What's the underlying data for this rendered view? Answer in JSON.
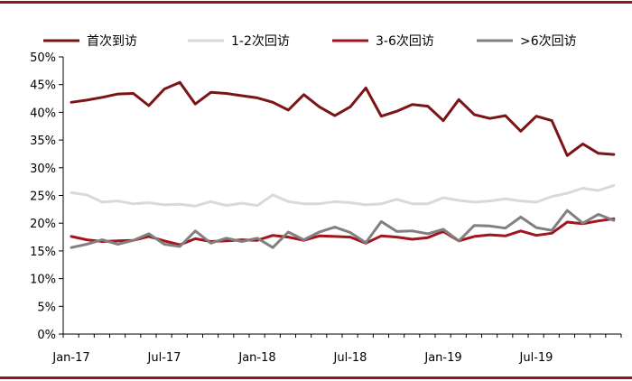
{
  "chart_data": {
    "type": "line",
    "title": "",
    "xlabel": "",
    "ylabel": "",
    "ylim": [
      0,
      50
    ],
    "y_ticks": [
      "0%",
      "5%",
      "10%",
      "15%",
      "20%",
      "25%",
      "30%",
      "35%",
      "40%",
      "45%",
      "50%"
    ],
    "x_tick_labels": [
      "Jan-17",
      "Jul-17",
      "Jan-18",
      "Jul-18",
      "Jan-19",
      "Jul-19"
    ],
    "x": [
      "2017-01",
      "2017-02",
      "2017-03",
      "2017-04",
      "2017-05",
      "2017-06",
      "2017-07",
      "2017-08",
      "2017-09",
      "2017-10",
      "2017-11",
      "2017-12",
      "2018-01",
      "2018-02",
      "2018-03",
      "2018-04",
      "2018-05",
      "2018-06",
      "2018-07",
      "2018-08",
      "2018-09",
      "2018-10",
      "2018-11",
      "2018-12",
      "2019-01",
      "2019-02",
      "2019-03",
      "2019-04",
      "2019-05",
      "2019-06",
      "2019-07",
      "2019-08",
      "2019-09",
      "2019-10",
      "2019-11",
      "2019-12"
    ],
    "legend_position": "top",
    "grid": false,
    "series": [
      {
        "name": "首次到访",
        "color": "#7b1416",
        "values": [
          41.8,
          42.2,
          42.7,
          43.3,
          43.4,
          41.2,
          44.2,
          45.4,
          41.5,
          43.6,
          43.4,
          43.0,
          42.6,
          41.8,
          40.4,
          43.2,
          41.0,
          39.4,
          41.0,
          44.4,
          39.3,
          40.2,
          41.4,
          41.1,
          38.5,
          42.3,
          39.6,
          38.9,
          39.4,
          36.6,
          39.3,
          38.5,
          32.2,
          34.3,
          32.6,
          32.4
        ]
      },
      {
        "name": "1-2次回访",
        "color": "#d9d9d9",
        "values": [
          25.5,
          25.1,
          23.8,
          24.0,
          23.5,
          23.7,
          23.3,
          23.4,
          23.1,
          23.9,
          23.2,
          23.6,
          23.2,
          25.1,
          23.9,
          23.5,
          23.5,
          23.9,
          23.7,
          23.3,
          23.5,
          24.3,
          23.5,
          23.5,
          24.6,
          24.1,
          23.8,
          24.0,
          24.4,
          24.0,
          23.8,
          24.8,
          25.4,
          26.3,
          25.9,
          26.8
        ]
      },
      {
        "name": "3-6次回访",
        "color": "#a3141c",
        "values": [
          17.6,
          17.0,
          16.7,
          16.8,
          16.9,
          17.6,
          16.8,
          16.1,
          17.2,
          16.7,
          16.8,
          17.0,
          16.9,
          17.8,
          17.5,
          16.9,
          17.7,
          17.6,
          17.5,
          16.4,
          17.7,
          17.5,
          17.1,
          17.4,
          18.5,
          16.8,
          17.6,
          17.9,
          17.7,
          18.6,
          17.8,
          18.2,
          20.2,
          19.9,
          20.4,
          20.8
        ]
      },
      {
        "name": ">6次回访",
        "color": "#808080",
        "values": [
          15.6,
          16.2,
          17.0,
          16.2,
          16.9,
          18.1,
          16.2,
          15.8,
          18.6,
          16.4,
          17.3,
          16.7,
          17.3,
          15.6,
          18.4,
          17.0,
          18.4,
          19.3,
          18.3,
          16.5,
          20.3,
          18.5,
          18.6,
          18.1,
          18.9,
          16.8,
          19.6,
          19.5,
          19.1,
          21.1,
          19.2,
          18.7,
          22.3,
          20.0,
          21.6,
          20.5
        ]
      }
    ]
  }
}
